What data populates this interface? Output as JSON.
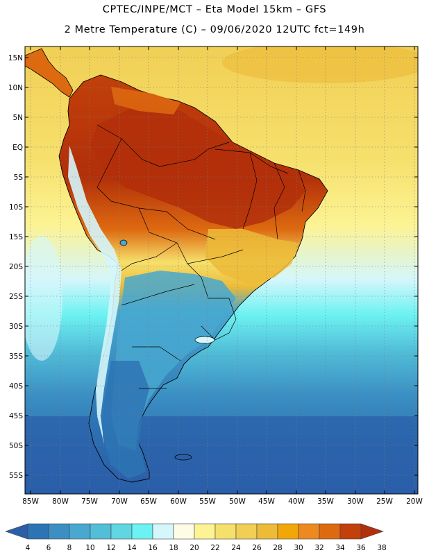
{
  "header": {
    "title_line1": "CPTEC/INPE/MCT –  Eta Model 15km – GFS",
    "title_line2": "2 Metre Temperature (C) – 09/06/2020 12UTC fct=149h"
  },
  "axes": {
    "lat_labels": [
      "15N",
      "10N",
      "5N",
      "EQ",
      "5S",
      "10S",
      "15S",
      "20S",
      "25S",
      "30S",
      "35S",
      "40S",
      "45S",
      "50S",
      "55S"
    ],
    "lon_labels": [
      "85W",
      "80W",
      "75W",
      "70W",
      "65W",
      "60W",
      "55W",
      "50W",
      "45W",
      "40W",
      "35W",
      "30W",
      "25W",
      "20W"
    ]
  },
  "legend": {
    "colors": [
      "#2b5ea8",
      "#2d74b4",
      "#3b8fc3",
      "#48a8d0",
      "#52bed8",
      "#5fd6e2",
      "#6cf2f2",
      "#d5f6fb",
      "#fefbe6",
      "#fcf394",
      "#f6e06c",
      "#f1cf55",
      "#ecbb38",
      "#f2a708",
      "#ec8a1f",
      "#de6a10",
      "#c2400a",
      "#b12f0a"
    ],
    "labels": [
      "4",
      "6",
      "8",
      "10",
      "12",
      "14",
      "16",
      "18",
      "20",
      "22",
      "24",
      "26",
      "28",
      "30",
      "32",
      "34",
      "36",
      "38"
    ]
  },
  "palette": {
    "ocean_north": "#f1cf55",
    "ocean_south": "#2b5ea8",
    "border": "#000000"
  }
}
